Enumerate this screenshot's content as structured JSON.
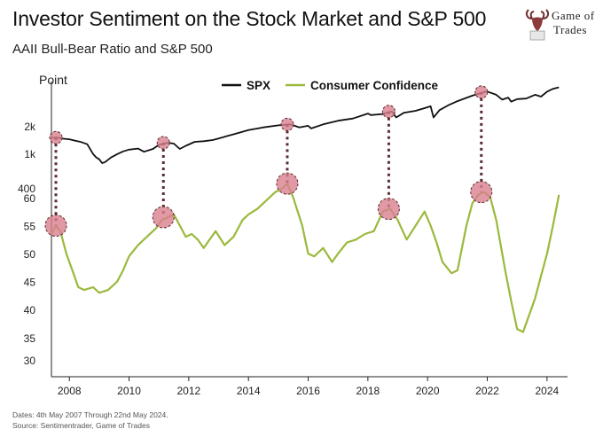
{
  "header": {
    "title": "Investor Sentiment on the Stock Market and S&P 500",
    "subtitle": "AAII Bull-Bear Ratio and S&P 500"
  },
  "logo": {
    "line1": "Game of",
    "line2": "Trades"
  },
  "footer": {
    "dates": "Dates: 4th May 2007 Through 22nd May 2024.",
    "source": "Source: Sentimentrader, Game of Trades"
  },
  "colors": {
    "spx": "#111111",
    "confidence": "#9ab93c",
    "marker_fill": "#d97f8e",
    "marker_line": "#5a2a2a",
    "connector": "#5b2a35"
  },
  "chart_data": {
    "type": "line",
    "ylabel": "Point",
    "legend": {
      "placement": "top",
      "entries": [
        "SPX",
        "Consumer Confidence"
      ]
    },
    "xlim": [
      2007.4,
      2024.45
    ],
    "x_ticks": [
      2008,
      2010,
      2012,
      2014,
      2016,
      2018,
      2020,
      2022,
      2024
    ],
    "spx_ticks": [
      "2k",
      "1k",
      "400"
    ],
    "confidence_ticks": [
      60,
      55,
      50,
      45,
      40,
      35,
      30
    ],
    "spx_axis": {
      "scale": "log",
      "range": [
        700,
        5600
      ]
    },
    "confidence_axis": {
      "range": [
        28,
        63
      ]
    },
    "series": [
      {
        "name": "SPX",
        "x": [
          2007.4,
          2007.6,
          2007.8,
          2008.0,
          2008.2,
          2008.4,
          2008.6,
          2008.8,
          2008.9,
          2009.0,
          2009.1,
          2009.2,
          2009.4,
          2009.6,
          2009.8,
          2010.0,
          2010.3,
          2010.5,
          2010.8,
          2011.0,
          2011.3,
          2011.5,
          2011.7,
          2011.9,
          2012.2,
          2012.5,
          2012.8,
          2013.0,
          2013.5,
          2014.0,
          2014.5,
          2015.0,
          2015.4,
          2015.6,
          2015.7,
          2016.0,
          2016.1,
          2016.5,
          2017.0,
          2017.5,
          2018.0,
          2018.1,
          2018.5,
          2018.8,
          2018.95,
          2019.2,
          2019.6,
          2019.9,
          2020.1,
          2020.2,
          2020.4,
          2020.7,
          2021.0,
          2021.5,
          2021.9,
          2022.0,
          2022.3,
          2022.5,
          2022.7,
          2022.8,
          2023.0,
          2023.3,
          2023.6,
          2023.8,
          2024.0,
          2024.2,
          2024.4
        ],
        "values": [
          1500,
          1510,
          1470,
          1450,
          1400,
          1350,
          1280,
          1000,
          920,
          880,
          800,
          820,
          920,
          1000,
          1070,
          1120,
          1150,
          1060,
          1140,
          1260,
          1330,
          1300,
          1140,
          1230,
          1360,
          1380,
          1420,
          1480,
          1640,
          1820,
          1950,
          2050,
          2100,
          2000,
          1950,
          2030,
          1900,
          2100,
          2300,
          2430,
          2750,
          2650,
          2720,
          2900,
          2500,
          2800,
          2950,
          3150,
          3300,
          2500,
          3000,
          3400,
          3750,
          4300,
          4700,
          4770,
          4400,
          3900,
          4100,
          3700,
          3950,
          4000,
          4400,
          4200,
          4750,
          5100,
          5300
        ]
      },
      {
        "name": "Consumer Confidence",
        "x": [
          2007.4,
          2007.55,
          2007.7,
          2007.9,
          2008.1,
          2008.3,
          2008.5,
          2008.8,
          2009.0,
          2009.3,
          2009.6,
          2009.8,
          2010.0,
          2010.3,
          2010.6,
          2010.9,
          2011.1,
          2011.3,
          2011.5,
          2011.7,
          2011.9,
          2012.1,
          2012.3,
          2012.5,
          2012.7,
          2012.9,
          2013.2,
          2013.5,
          2013.8,
          2014.0,
          2014.3,
          2014.6,
          2014.9,
          2015.1,
          2015.3,
          2015.5,
          2015.8,
          2016.0,
          2016.2,
          2016.5,
          2016.8,
          2017.0,
          2017.3,
          2017.6,
          2017.9,
          2018.2,
          2018.5,
          2018.75,
          2019.0,
          2019.3,
          2019.6,
          2019.9,
          2020.1,
          2020.3,
          2020.5,
          2020.8,
          2021.0,
          2021.3,
          2021.5,
          2021.7,
          2021.9,
          2022.1,
          2022.3,
          2022.6,
          2022.8,
          2023.0,
          2023.2,
          2023.4,
          2023.6,
          2023.8,
          2024.0,
          2024.2,
          2024.4
        ],
        "values": [
          53.5,
          55,
          54,
          50,
          47,
          44,
          43.5,
          44,
          43,
          43.5,
          45,
          47,
          49.5,
          51.5,
          53,
          54.5,
          56,
          56.5,
          57,
          55,
          53,
          53.5,
          52.5,
          51,
          52.5,
          54,
          51.5,
          53,
          56,
          57,
          58,
          59.5,
          61,
          61.5,
          62.5,
          60,
          55,
          50,
          49.5,
          51,
          48.5,
          50,
          52,
          52.5,
          53.5,
          54,
          57.5,
          58,
          56,
          52.5,
          55,
          57.5,
          55,
          52,
          48.5,
          46.5,
          47,
          55,
          59,
          60.5,
          61,
          60,
          56,
          47,
          41.5,
          36.5,
          36,
          39,
          42,
          46,
          50,
          55,
          60.5
        ]
      }
    ],
    "highlights": [
      {
        "x": 2007.55,
        "spx": 1510,
        "confidence": 55
      },
      {
        "x": 2011.15,
        "spx": 1330,
        "confidence": 56.5
      },
      {
        "x": 2015.3,
        "spx": 2100,
        "confidence": 62.5
      },
      {
        "x": 2018.7,
        "spx": 2900,
        "confidence": 58
      },
      {
        "x": 2021.8,
        "spx": 4700,
        "confidence": 61
      }
    ]
  }
}
